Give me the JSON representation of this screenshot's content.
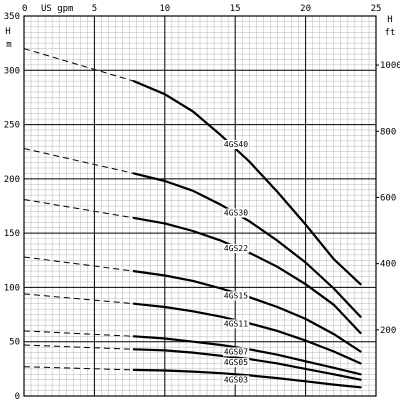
{
  "chart_data": {
    "type": "line",
    "title": "",
    "top_axis": {
      "label": "US gpm",
      "ticks": [
        "0",
        "5",
        "10",
        "15",
        "20",
        "25"
      ],
      "range": [
        0,
        25
      ]
    },
    "left_axis": {
      "label_top": "H",
      "label_bottom": "m",
      "ticks": [
        "0",
        "50",
        "100",
        "150",
        "200",
        "250",
        "300",
        "350"
      ],
      "range": [
        0,
        350
      ]
    },
    "right_axis": {
      "label_top": "H",
      "label_bottom": "ft",
      "ticks": [
        "200",
        "400",
        "600",
        "800",
        "1000"
      ],
      "unit_factor": 3.28084
    },
    "grid": true,
    "operating_range": {
      "start_gpm": 7.8,
      "end_gpm": 23.9
    },
    "series": [
      {
        "name": "4GS40",
        "label_at_gpm": 14.2,
        "dashed": [
          [
            0,
            320
          ],
          [
            7.8,
            290
          ]
        ],
        "solid": [
          [
            7.8,
            290
          ],
          [
            10,
            278
          ],
          [
            12,
            262
          ],
          [
            14,
            240
          ],
          [
            16,
            216
          ],
          [
            18,
            188
          ],
          [
            20,
            158
          ],
          [
            22,
            126
          ],
          [
            23.9,
            103
          ]
        ]
      },
      {
        "name": "4GS30",
        "label_at_gpm": 14.2,
        "dashed": [
          [
            0,
            228
          ],
          [
            7.8,
            205
          ]
        ],
        "solid": [
          [
            7.8,
            205
          ],
          [
            10,
            198
          ],
          [
            12,
            189
          ],
          [
            14,
            176
          ],
          [
            16,
            161
          ],
          [
            18,
            143
          ],
          [
            20,
            123
          ],
          [
            22,
            99
          ],
          [
            23.9,
            73
          ]
        ]
      },
      {
        "name": "4GS22",
        "label_at_gpm": 14.2,
        "dashed": [
          [
            0,
            181
          ],
          [
            7.8,
            164
          ]
        ],
        "solid": [
          [
            7.8,
            164
          ],
          [
            10,
            159
          ],
          [
            12,
            152
          ],
          [
            14,
            143
          ],
          [
            16,
            132
          ],
          [
            18,
            119
          ],
          [
            20,
            103
          ],
          [
            22,
            84
          ],
          [
            23.9,
            58
          ]
        ]
      },
      {
        "name": "4GS15",
        "label_at_gpm": 14.2,
        "dashed": [
          [
            0,
            128
          ],
          [
            7.8,
            115
          ]
        ],
        "solid": [
          [
            7.8,
            115
          ],
          [
            10,
            111
          ],
          [
            12,
            106
          ],
          [
            14,
            99
          ],
          [
            16,
            91
          ],
          [
            18,
            82
          ],
          [
            20,
            71
          ],
          [
            22,
            57
          ],
          [
            23.9,
            41
          ]
        ]
      },
      {
        "name": "4GS11",
        "label_at_gpm": 14.2,
        "dashed": [
          [
            0,
            94
          ],
          [
            7.8,
            85
          ]
        ],
        "solid": [
          [
            7.8,
            85
          ],
          [
            10,
            82
          ],
          [
            12,
            78
          ],
          [
            14,
            73
          ],
          [
            16,
            67
          ],
          [
            18,
            60
          ],
          [
            20,
            51
          ],
          [
            22,
            41
          ],
          [
            23.9,
            30
          ]
        ]
      },
      {
        "name": "4GS07",
        "label_at_gpm": 14.2,
        "dashed": [
          [
            0,
            60
          ],
          [
            7.8,
            55
          ]
        ],
        "solid": [
          [
            7.8,
            55
          ],
          [
            10,
            53
          ],
          [
            12,
            50
          ],
          [
            14,
            47
          ],
          [
            16,
            43
          ],
          [
            18,
            38
          ],
          [
            20,
            32
          ],
          [
            22,
            26
          ],
          [
            23.9,
            20
          ]
        ]
      },
      {
        "name": "4GS05",
        "label_at_gpm": 14.2,
        "dashed": [
          [
            0,
            47
          ],
          [
            7.8,
            43
          ]
        ],
        "solid": [
          [
            7.8,
            43
          ],
          [
            10,
            42
          ],
          [
            12,
            40
          ],
          [
            14,
            37
          ],
          [
            16,
            34
          ],
          [
            18,
            30
          ],
          [
            20,
            25
          ],
          [
            22,
            20
          ],
          [
            23.9,
            15
          ]
        ]
      },
      {
        "name": "4GS03",
        "label_at_gpm": 14.2,
        "dashed": [
          [
            0,
            27
          ],
          [
            7.8,
            24
          ]
        ],
        "solid": [
          [
            7.8,
            24
          ],
          [
            10,
            23.5
          ],
          [
            12,
            22.5
          ],
          [
            14,
            21
          ],
          [
            16,
            19
          ],
          [
            18,
            16.5
          ],
          [
            20,
            13.5
          ],
          [
            22,
            10.5
          ],
          [
            23.9,
            8
          ]
        ]
      }
    ]
  }
}
